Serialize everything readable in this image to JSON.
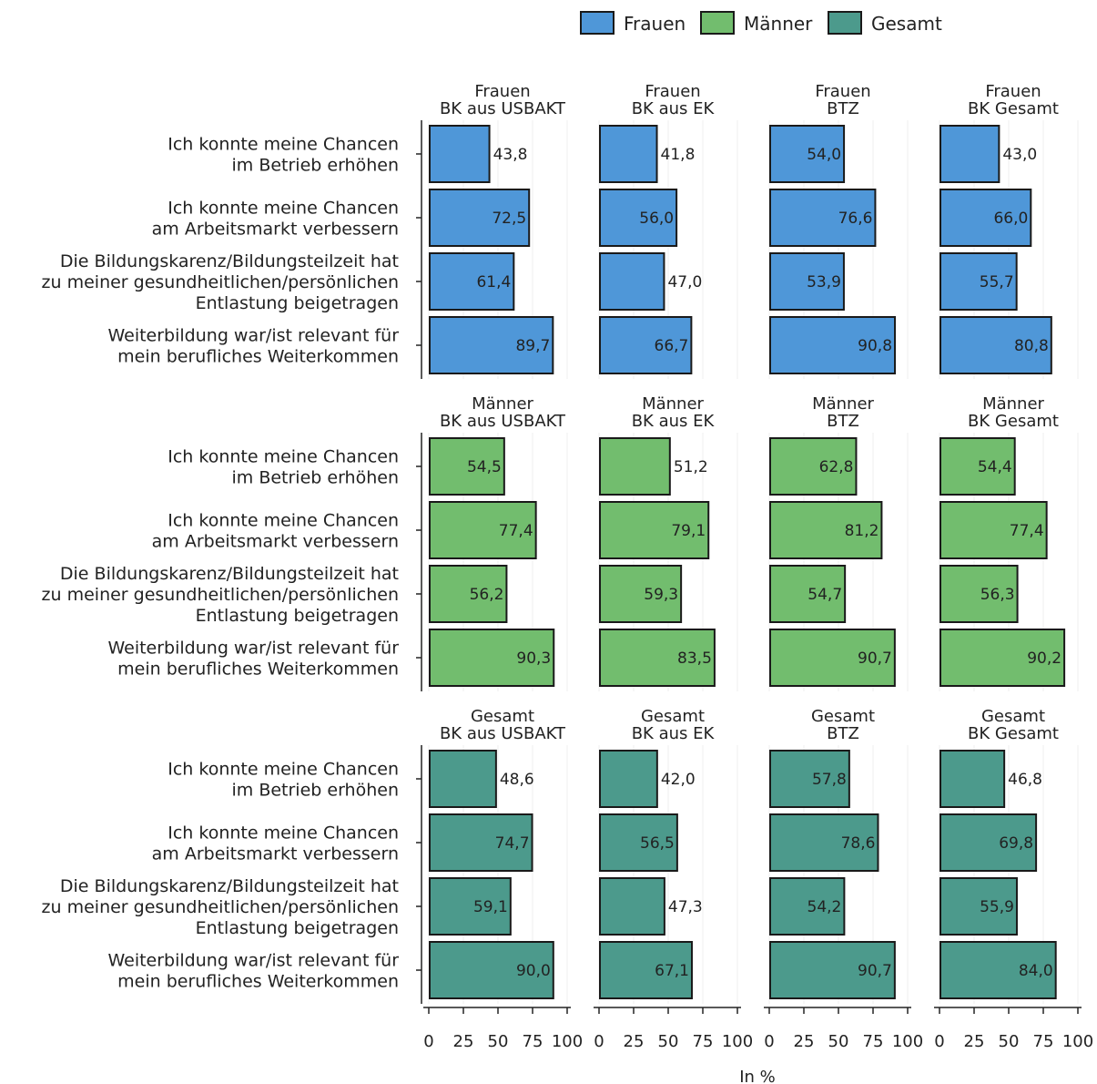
{
  "chart_data": {
    "type": "bar",
    "orientation": "horizontal",
    "legend": {
      "placement": "top-right",
      "entries": [
        {
          "name": "Frauen",
          "color": "#4f97d8"
        },
        {
          "name": "Männer",
          "color": "#72bd6e"
        },
        {
          "name": "Gesamt",
          "color": "#4c9a8c"
        }
      ]
    },
    "xlabel": "In %",
    "xlim": [
      0,
      100
    ],
    "xticks": [
      "0",
      "25",
      "50",
      "75",
      "100"
    ],
    "grid": true,
    "categories": [
      [
        "Ich konnte meine Chancen",
        "im Betrieb erhöhen"
      ],
      [
        "Ich konnte meine Chancen",
        "am Arbeitsmarkt verbessern"
      ],
      [
        "Die Bildungskarenz/Bildungsteilzeit hat",
        "zu meiner gesundheitlichen/persönlichen",
        "Entlastung beigetragen"
      ],
      [
        "Weiterbildung war/ist relevant für",
        "mein berufliches Weiterkommen"
      ]
    ],
    "rows": [
      {
        "group": "Frauen",
        "color": "#4f97d8",
        "panels": [
          {
            "title": [
              "Frauen",
              "BK aus USBAKT"
            ],
            "values": [
              43.8,
              72.5,
              61.4,
              89.7
            ],
            "labels": [
              "43,8",
              "72,5",
              "61,4",
              "89,7"
            ]
          },
          {
            "title": [
              "Frauen",
              "BK aus EK"
            ],
            "values": [
              41.8,
              56.0,
              47.0,
              66.7
            ],
            "labels": [
              "41,8",
              "56,0",
              "47,0",
              "66,7"
            ]
          },
          {
            "title": [
              "Frauen",
              "BTZ"
            ],
            "values": [
              54.0,
              76.6,
              53.9,
              90.8
            ],
            "labels": [
              "54,0",
              "76,6",
              "53,9",
              "90,8"
            ]
          },
          {
            "title": [
              "Frauen",
              "BK Gesamt"
            ],
            "values": [
              43.0,
              66.0,
              55.7,
              80.8
            ],
            "labels": [
              "43,0",
              "66,0",
              "55,7",
              "80,8"
            ]
          }
        ]
      },
      {
        "group": "Männer",
        "color": "#72bd6e",
        "panels": [
          {
            "title": [
              "Männer",
              "BK aus USBAKT"
            ],
            "values": [
              54.5,
              77.4,
              56.2,
              90.3
            ],
            "labels": [
              "54,5",
              "77,4",
              "56,2",
              "90,3"
            ]
          },
          {
            "title": [
              "Männer",
              "BK aus EK"
            ],
            "values": [
              51.2,
              79.1,
              59.3,
              83.5
            ],
            "labels": [
              "51,2",
              "79,1",
              "59,3",
              "83,5"
            ]
          },
          {
            "title": [
              "Männer",
              "BTZ"
            ],
            "values": [
              62.8,
              81.2,
              54.7,
              90.7
            ],
            "labels": [
              "62,8",
              "81,2",
              "54,7",
              "90,7"
            ]
          },
          {
            "title": [
              "Männer",
              "BK Gesamt"
            ],
            "values": [
              54.4,
              77.4,
              56.3,
              90.2
            ],
            "labels": [
              "54,4",
              "77,4",
              "56,3",
              "90,2"
            ]
          }
        ]
      },
      {
        "group": "Gesamt",
        "color": "#4c9a8c",
        "panels": [
          {
            "title": [
              "Gesamt",
              "BK aus USBAKT"
            ],
            "values": [
              48.6,
              74.7,
              59.1,
              90.0
            ],
            "labels": [
              "48,6",
              "74,7",
              "59,1",
              "90,0"
            ]
          },
          {
            "title": [
              "Gesamt",
              "BK aus EK"
            ],
            "values": [
              42.0,
              56.5,
              47.3,
              67.1
            ],
            "labels": [
              "42,0",
              "56,5",
              "47,3",
              "67,1"
            ]
          },
          {
            "title": [
              "Gesamt",
              "BTZ"
            ],
            "values": [
              57.8,
              78.6,
              54.2,
              90.7
            ],
            "labels": [
              "57,8",
              "78,6",
              "54,2",
              "90,7"
            ]
          },
          {
            "title": [
              "Gesamt",
              "BK Gesamt"
            ],
            "values": [
              46.8,
              69.8,
              55.9,
              84.0
            ],
            "labels": [
              "46,8",
              "69,8",
              "55,9",
              "84,0"
            ]
          }
        ]
      }
    ]
  }
}
